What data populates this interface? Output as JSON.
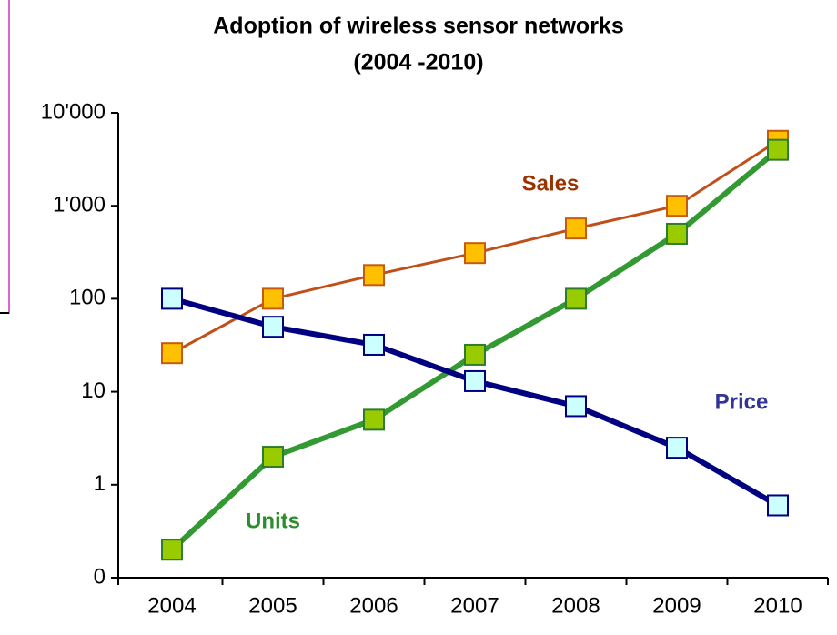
{
  "chart_data": {
    "type": "line",
    "title": "Adoption of wireless sensor networks",
    "subtitle": "(2004 -2010)",
    "categories": [
      "2004",
      "2005",
      "2006",
      "2007",
      "2008",
      "2009",
      "2010"
    ],
    "log_scale": true,
    "ylim": [
      0.1,
      10000
    ],
    "yticks": [
      {
        "value": 0.1,
        "label": "0"
      },
      1,
      10,
      100,
      {
        "value": 1000,
        "label": "1'000"
      },
      {
        "value": 10000,
        "label": "10'000"
      }
    ],
    "grid": false,
    "series": [
      {
        "name": "Sales",
        "color": "#c0501a",
        "values": [
          26,
          100,
          180,
          310,
          570,
          1000,
          5000
        ]
      },
      {
        "name": "Units",
        "color": "#339933",
        "values": [
          0.2,
          2,
          5,
          25,
          100,
          500,
          4000
        ]
      },
      {
        "name": "Price",
        "color": "#000080",
        "values": [
          100,
          50,
          32,
          13,
          7,
          2.5,
          0.6
        ]
      }
    ]
  }
}
